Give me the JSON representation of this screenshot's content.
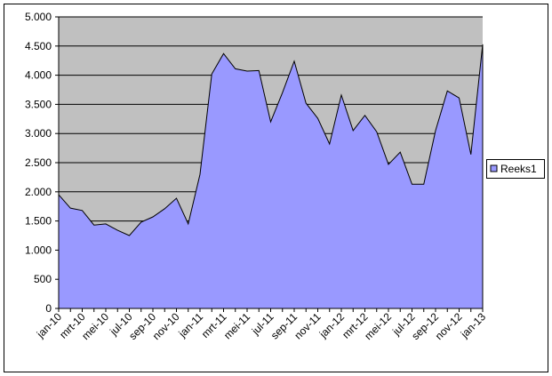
{
  "chart_data": {
    "type": "area",
    "categories": [
      "jan-10",
      null,
      "mrt-10",
      null,
      "mei-10",
      null,
      "jul-10",
      null,
      "sep-10",
      null,
      "nov-10",
      null,
      "jan-11",
      null,
      "mrt-11",
      null,
      "mei-11",
      null,
      "jul-11",
      null,
      "sep-11",
      null,
      "nov-11",
      null,
      "jan-12",
      null,
      "mrt-12",
      null,
      "mei-12",
      null,
      "jul-12",
      null,
      "sep-12",
      null,
      "nov-12",
      null,
      "jan-13"
    ],
    "series": [
      {
        "name": "Reeks1",
        "color": "#9999ff",
        "values": [
          1950,
          1720,
          1680,
          1430,
          1450,
          1340,
          1250,
          1480,
          1570,
          1710,
          1890,
          1450,
          2300,
          4020,
          4370,
          4110,
          4070,
          4080,
          3200,
          3700,
          4240,
          3520,
          3260,
          2820,
          3660,
          3050,
          3310,
          3030,
          2470,
          2680,
          2130,
          2130,
          3050,
          3730,
          3610,
          2640,
          4530
        ]
      }
    ],
    "ylim": [
      0,
      5000
    ],
    "yticks": [
      0,
      {
        "value": 500,
        "label": "500"
      },
      {
        "value": 1000,
        "label": "1.000"
      },
      {
        "value": 1500,
        "label": "1.500"
      },
      {
        "value": 2000,
        "label": "2.000"
      },
      {
        "value": 2500,
        "label": "2.500"
      },
      {
        "value": 3000,
        "label": "3.000"
      },
      {
        "value": 3500,
        "label": "3.500"
      },
      {
        "value": 4000,
        "label": "4.000"
      },
      {
        "value": 4500,
        "label": "4.500"
      },
      {
        "value": 5000,
        "label": "5.000"
      }
    ],
    "grid": true,
    "plot_background": "#c0c0c0",
    "legend": "right"
  }
}
